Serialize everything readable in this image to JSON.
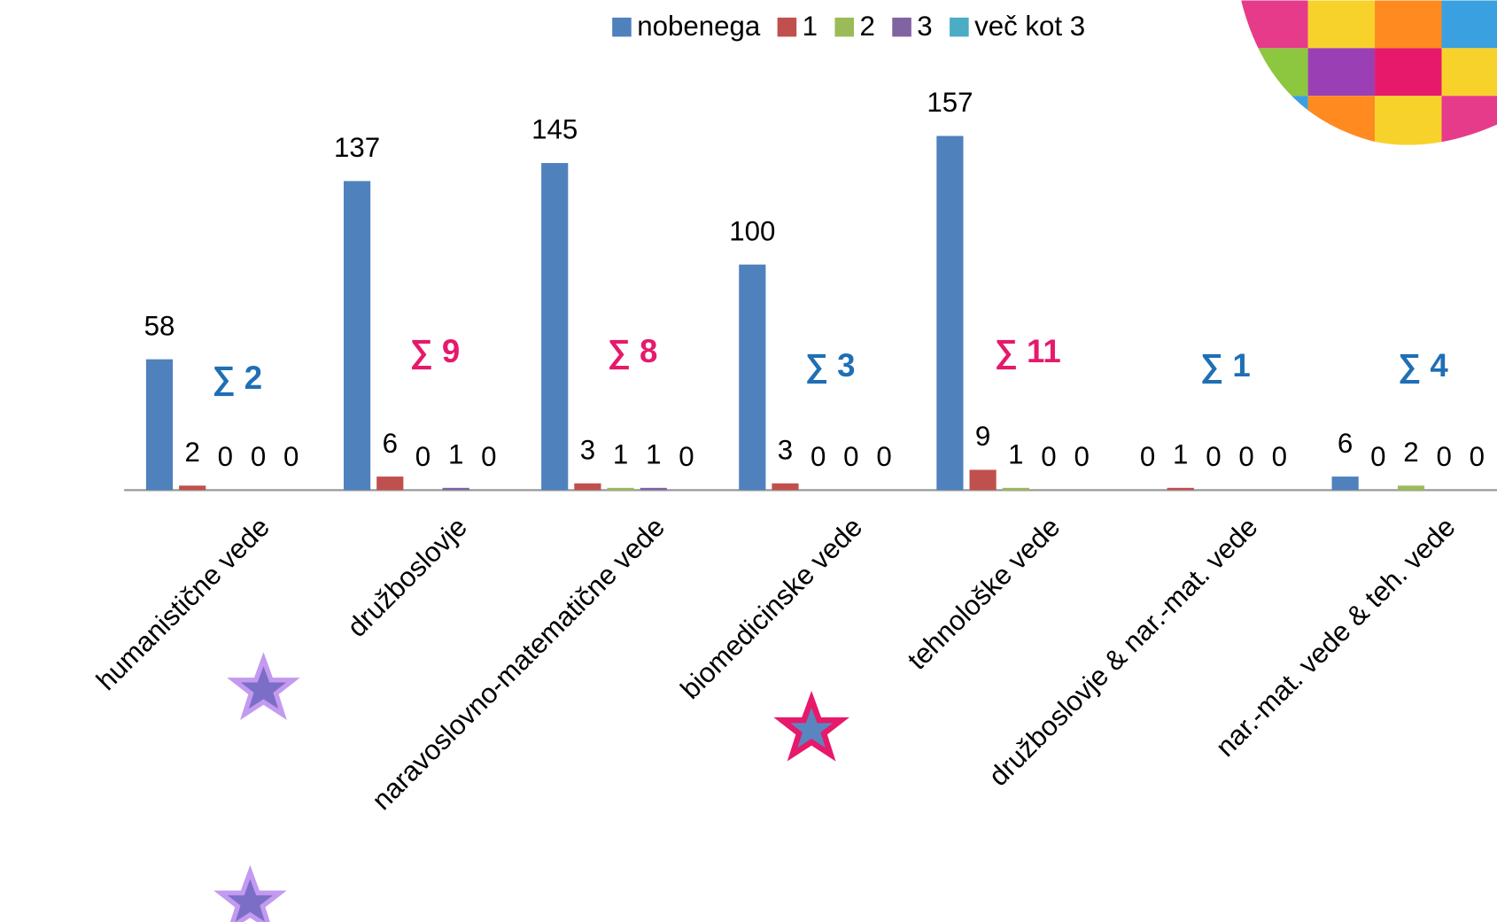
{
  "chart_data": {
    "type": "bar",
    "categories": [
      "humanistične vede",
      "družboslovje",
      "naravoslovno-matematične vede",
      "biomedicinske vede",
      "tehnološke vede",
      "družboslovje & nar.-mat. vede",
      "nar.-mat. vede & teh. vede"
    ],
    "series": [
      {
        "name": "nobenega",
        "color": "#4f81bd",
        "values": [
          58,
          137,
          145,
          100,
          157,
          0,
          6
        ]
      },
      {
        "name": "1",
        "color": "#c0504d",
        "values": [
          2,
          6,
          3,
          3,
          9,
          1,
          0
        ]
      },
      {
        "name": "2",
        "color": "#9bbb59",
        "values": [
          0,
          0,
          1,
          0,
          1,
          0,
          2
        ]
      },
      {
        "name": "3",
        "color": "#8064a2",
        "values": [
          0,
          1,
          1,
          0,
          0,
          0,
          0
        ]
      },
      {
        "name": "več kot 3",
        "color": "#4bacc6",
        "values": [
          0,
          0,
          0,
          0,
          0,
          0,
          0
        ]
      }
    ],
    "annotations": [
      {
        "text": "∑ 2",
        "color": "#1f6fb5"
      },
      {
        "text": "∑ 9",
        "color": "#e6196b"
      },
      {
        "text": "∑ 8",
        "color": "#e6196b"
      },
      {
        "text": "∑ 3",
        "color": "#1f6fb5"
      },
      {
        "text": "∑ 11",
        "color": "#e6196b"
      },
      {
        "text": "∑ 1",
        "color": "#1f6fb5"
      },
      {
        "text": "∑ 4",
        "color": "#1f6fb5"
      }
    ],
    "legend": "top"
  }
}
